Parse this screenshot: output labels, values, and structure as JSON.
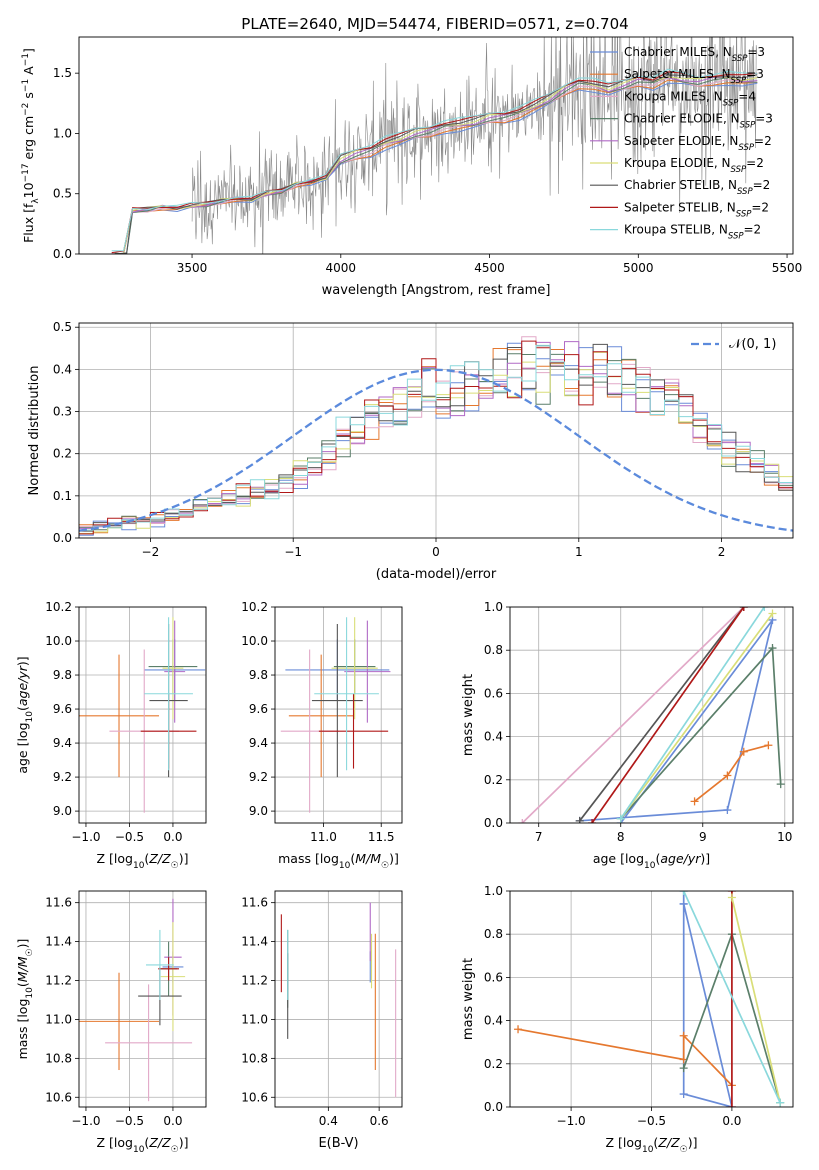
{
  "figure": {
    "title": "PLATE=2640, MJD=54474, FIBERID=0571, z=0.704"
  },
  "model_colors": [
    "#6a8cd8",
    "#e5782f",
    "#e2a9c8",
    "#5b7f6a",
    "#b06ac6",
    "#d9de78",
    "#555555",
    "#b01818",
    "#8ad8dc"
  ],
  "chart_data": [
    {
      "id": "spectrum",
      "type": "line",
      "title": "PLATE=2640, MJD=54474, FIBERID=0571, z=0.704",
      "xlabel": "wavelength [Angstrom, rest frame]",
      "ylabel": "Flux [f_λ 10^-17 erg cm^-2 s^-1 A^-1]",
      "xlim": [
        3120,
        5520
      ],
      "ylim": [
        0,
        1.8
      ],
      "xticks": [
        "3500",
        "4000",
        "4500",
        "5000",
        "5500"
      ],
      "yticks": [
        "0.0",
        "0.5",
        "1.0",
        "1.5"
      ],
      "grid": false,
      "legend_position": "top-right",
      "series": [
        {
          "name": "Chabrier MILES, N_SSP=3",
          "color_index": 0
        },
        {
          "name": "Salpeter MILES, N_SSP=3",
          "color_index": 1
        },
        {
          "name": "Kroupa MILES, N_SSP=4",
          "color_index": 2
        },
        {
          "name": "Chabrier ELODIE, N_SSP=3",
          "color_index": 3
        },
        {
          "name": "Salpeter ELODIE, N_SSP=2",
          "color_index": 4
        },
        {
          "name": "Kroupa ELODIE, N_SSP=2",
          "color_index": 5
        },
        {
          "name": "Chabrier STELIB, N_SSP=2",
          "color_index": 6
        },
        {
          "name": "Salpeter STELIB, N_SSP=2",
          "color_index": 7
        },
        {
          "name": "Kroupa STELIB, N_SSP=2",
          "color_index": 8
        }
      ],
      "model_continuum": {
        "x": [
          3230,
          3270,
          3300,
          3350,
          3400,
          3450,
          3500,
          3550,
          3600,
          3650,
          3700,
          3750,
          3800,
          3850,
          3900,
          3950,
          4000,
          4050,
          4100,
          4150,
          4200,
          4250,
          4300,
          4350,
          4400,
          4450,
          4500,
          4550,
          4600,
          4650,
          4700,
          4750,
          4800,
          4850,
          4900,
          4950,
          5000,
          5050,
          5100,
          5150,
          5200,
          5250,
          5300,
          5350,
          5400
        ],
        "y": [
          0.0,
          0.0,
          0.36,
          0.37,
          0.39,
          0.38,
          0.4,
          0.41,
          0.44,
          0.46,
          0.45,
          0.5,
          0.52,
          0.58,
          0.6,
          0.63,
          0.78,
          0.83,
          0.86,
          0.92,
          0.95,
          1.0,
          1.02,
          1.06,
          1.07,
          1.09,
          1.13,
          1.14,
          1.17,
          1.22,
          1.28,
          1.36,
          1.42,
          1.4,
          1.36,
          1.4,
          1.44,
          1.42,
          1.47,
          1.45,
          1.43,
          1.45,
          1.46,
          1.44,
          1.45
        ]
      },
      "data_trace": {
        "x_start": 3500,
        "x_end": 5400,
        "note_free": true
      }
    },
    {
      "id": "residuals",
      "type": "histogram",
      "xlabel": "(data-model)/error",
      "ylabel": "Normed distribution",
      "xlim": [
        -2.5,
        2.5
      ],
      "ylim": [
        0,
        0.51
      ],
      "xticks": [
        "−2",
        "−1",
        "0",
        "1",
        "2"
      ],
      "yticks": [
        "0.0",
        "0.1",
        "0.2",
        "0.3",
        "0.4",
        "0.5"
      ],
      "grid": true,
      "legend_position": "top-right",
      "reference_curve": {
        "name": "𝒩(0, 1)",
        "mean": 0,
        "sigma": 1
      },
      "bin_width": 0.1,
      "base_shape": [
        0.02,
        0.025,
        0.03,
        0.035,
        0.04,
        0.04,
        0.05,
        0.06,
        0.07,
        0.08,
        0.09,
        0.1,
        0.11,
        0.12,
        0.14,
        0.15,
        0.17,
        0.19,
        0.21,
        0.23,
        0.25,
        0.27,
        0.29,
        0.31,
        0.33,
        0.34,
        0.36,
        0.37,
        0.38,
        0.39,
        0.39,
        0.4,
        0.4,
        0.39,
        0.39,
        0.38,
        0.37,
        0.36,
        0.34,
        0.33,
        0.31,
        0.29,
        0.27,
        0.25,
        0.23,
        0.21,
        0.19,
        0.17,
        0.15,
        0.13,
        0.12,
        0.1,
        0.09,
        0.08,
        0.07,
        0.06,
        0.05,
        0.05,
        0.04,
        0.04
      ]
    },
    {
      "id": "age_vs_Z",
      "type": "scatter",
      "xlabel": "Z [log10(Z/Z☉)]",
      "ylabel": "age  [log10(age/yr)]",
      "xlim": [
        -1.08,
        0.38
      ],
      "ylim": [
        8.93,
        10.2
      ],
      "xticks": [
        "−1.0",
        "−0.5",
        "0.0"
      ],
      "yticks": [
        "9.0",
        "9.2",
        "9.4",
        "9.6",
        "9.8",
        "10.0",
        "10.2"
      ],
      "grid": true,
      "points": [
        {
          "x": 0.02,
          "y": 9.83,
          "xerr": 0.35,
          "yerr": 0.18,
          "color_index": 0
        },
        {
          "x": -0.62,
          "y": 9.56,
          "xerr": 0.46,
          "yerr": 0.36,
          "color_index": 1
        },
        {
          "x": -0.33,
          "y": 9.47,
          "xerr": 0.4,
          "yerr": 0.48,
          "color_index": 2
        },
        {
          "x": 0.0,
          "y": 9.85,
          "xerr": 0.28,
          "yerr": 0.16,
          "color_index": 3
        },
        {
          "x": 0.02,
          "y": 9.82,
          "xerr": 0.12,
          "yerr": 0.3,
          "color_index": 4
        },
        {
          "x": 0.0,
          "y": 9.84,
          "xerr": 0.12,
          "yerr": 0.3,
          "color_index": 5
        },
        {
          "x": -0.05,
          "y": 9.65,
          "xerr": 0.22,
          "yerr": 0.45,
          "color_index": 6
        },
        {
          "x": -0.05,
          "y": 9.47,
          "xerr": 0.32,
          "yerr": 0.22,
          "color_index": 7
        },
        {
          "x": -0.05,
          "y": 9.69,
          "xerr": 0.28,
          "yerr": 0.45,
          "color_index": 8
        }
      ]
    },
    {
      "id": "age_vs_mass",
      "type": "scatter",
      "xlabel": "mass [log10(M/M☉)]",
      "xlim": [
        10.58,
        11.68
      ],
      "ylim": [
        8.93,
        10.2
      ],
      "xticks": [
        "11.0",
        "11.5"
      ],
      "yticks": [
        "9.0",
        "9.2",
        "9.4",
        "9.6",
        "9.8",
        "10.0",
        "10.2"
      ],
      "grid": true,
      "points": [
        {
          "x": 11.12,
          "y": 9.83,
          "xerr": 0.45,
          "yerr": 0.18,
          "color_index": 0
        },
        {
          "x": 10.98,
          "y": 9.56,
          "xerr": 0.28,
          "yerr": 0.36,
          "color_index": 1
        },
        {
          "x": 10.88,
          "y": 9.47,
          "xerr": 0.25,
          "yerr": 0.48,
          "color_index": 2
        },
        {
          "x": 11.27,
          "y": 9.85,
          "xerr": 0.18,
          "yerr": 0.16,
          "color_index": 3
        },
        {
          "x": 11.38,
          "y": 9.82,
          "xerr": 0.2,
          "yerr": 0.3,
          "color_index": 4
        },
        {
          "x": 11.27,
          "y": 9.84,
          "xerr": 0.2,
          "yerr": 0.3,
          "color_index": 5
        },
        {
          "x": 11.12,
          "y": 9.65,
          "xerr": 0.22,
          "yerr": 0.45,
          "color_index": 6
        },
        {
          "x": 11.26,
          "y": 9.47,
          "xerr": 0.3,
          "yerr": 0.22,
          "color_index": 7
        },
        {
          "x": 11.2,
          "y": 9.69,
          "xerr": 0.28,
          "yerr": 0.45,
          "color_index": 8
        }
      ]
    },
    {
      "id": "mass_weight_vs_age",
      "type": "line",
      "xlabel": "age  [log10(age/yr)]",
      "ylabel": "mass weight",
      "xlim": [
        6.65,
        10.1
      ],
      "ylim": [
        0,
        1.0
      ],
      "xticks": [
        "7",
        "8",
        "9",
        "10"
      ],
      "yticks": [
        "0.0",
        "0.2",
        "0.4",
        "0.6",
        "0.8",
        "1.0"
      ],
      "grid": true,
      "series": [
        {
          "color_index": 0,
          "x": [
            7.5,
            9.3,
            9.85,
            8.0
          ],
          "y": [
            0.01,
            0.06,
            0.94,
            0.0
          ]
        },
        {
          "color_index": 1,
          "x": [
            8.9,
            9.3,
            9.5,
            9.8
          ],
          "y": [
            0.1,
            0.22,
            0.33,
            0.36
          ]
        },
        {
          "color_index": 2,
          "x": [
            6.8,
            9.5
          ],
          "y": [
            0.0,
            1.0
          ]
        },
        {
          "color_index": 3,
          "x": [
            8.0,
            9.85,
            9.95
          ],
          "y": [
            0.02,
            0.81,
            0.18
          ]
        },
        {
          "color_index": 6,
          "x": [
            7.5,
            9.5
          ],
          "y": [
            0.01,
            1.0
          ]
        },
        {
          "color_index": 7,
          "x": [
            7.65,
            9.5
          ],
          "y": [
            0.0,
            1.0
          ]
        },
        {
          "color_index": 5,
          "x": [
            8.0,
            9.85
          ],
          "y": [
            0.02,
            0.97
          ]
        },
        {
          "color_index": 8,
          "x": [
            8.0,
            9.75
          ],
          "y": [
            0.02,
            1.0
          ]
        }
      ]
    },
    {
      "id": "mass_vs_Z",
      "type": "scatter",
      "xlabel": "Z [log10(Z/Z☉)]",
      "ylabel": "mass [log10(M/M☉)]",
      "xlim": [
        -1.08,
        0.38
      ],
      "ylim": [
        10.55,
        11.66
      ],
      "xticks": [
        "−1.0",
        "−0.5",
        "0.0"
      ],
      "yticks": [
        "10.6",
        "10.8",
        "11.0",
        "11.2",
        "11.4",
        "11.6"
      ],
      "grid": true,
      "points": [
        {
          "x": 0.0,
          "y": 11.27,
          "xerr": 0.12,
          "yerr": 0.08,
          "color_index": 0
        },
        {
          "x": -0.62,
          "y": 10.99,
          "xerr": 0.46,
          "yerr": 0.25,
          "color_index": 1
        },
        {
          "x": -0.28,
          "y": 10.88,
          "xerr": 0.5,
          "yerr": 0.3,
          "color_index": 2
        },
        {
          "x": -0.05,
          "y": 11.26,
          "xerr": 0.1,
          "yerr": 0.14,
          "color_index": 3
        },
        {
          "x": 0.0,
          "y": 11.32,
          "xerr": 0.1,
          "yerr": 0.3,
          "color_index": 4
        },
        {
          "x": 0.0,
          "y": 11.22,
          "xerr": 0.14,
          "yerr": 0.28,
          "color_index": 5
        },
        {
          "x": -0.15,
          "y": 11.12,
          "xerr": 0.25,
          "yerr": 0.15,
          "color_index": 6
        },
        {
          "x": -0.05,
          "y": 11.26,
          "xerr": 0.12,
          "yerr": 0.06,
          "color_index": 7
        },
        {
          "x": -0.15,
          "y": 11.28,
          "xerr": 0.16,
          "yerr": 0.18,
          "color_index": 8
        }
      ]
    },
    {
      "id": "mass_vs_ebv",
      "type": "scatter",
      "xlabel": "E(B-V)",
      "xlim": [
        0.19,
        0.69
      ],
      "ylim": [
        10.55,
        11.66
      ],
      "xticks": [
        "0.4",
        "0.6"
      ],
      "yticks": [
        "10.6",
        "10.8",
        "11.0",
        "11.2",
        "11.4",
        "11.6"
      ],
      "grid": true,
      "points": [
        {
          "x": 0.565,
          "y": 11.27,
          "yerr": 0.08,
          "color_index": 0
        },
        {
          "x": 0.585,
          "y": 11.09,
          "yerr": 0.35,
          "color_index": 1
        },
        {
          "x": 0.665,
          "y": 10.98,
          "yerr": 0.38,
          "color_index": 2
        },
        {
          "x": 0.24,
          "y": 11.26,
          "yerr": 0.2,
          "color_index": 3
        },
        {
          "x": 0.565,
          "y": 11.45,
          "yerr": 0.15,
          "color_index": 4
        },
        {
          "x": 0.57,
          "y": 11.3,
          "yerr": 0.14,
          "color_index": 5
        },
        {
          "x": 0.24,
          "y": 11.12,
          "yerr": 0.22,
          "color_index": 6
        },
        {
          "x": 0.215,
          "y": 11.34,
          "yerr": 0.2,
          "color_index": 7
        },
        {
          "x": 0.24,
          "y": 11.28,
          "yerr": 0.18,
          "color_index": 8
        }
      ]
    },
    {
      "id": "mass_weight_vs_Z",
      "type": "line",
      "xlabel": "Z [log10(Z/Z☉)]",
      "ylabel": "mass weight",
      "xlim": [
        -1.38,
        0.38
      ],
      "ylim": [
        0,
        1.0
      ],
      "xticks": [
        "−1.0",
        "−0.5",
        "0.0"
      ],
      "yticks": [
        "0.0",
        "0.2",
        "0.4",
        "0.6",
        "0.8",
        "1.0"
      ],
      "grid": true,
      "series": [
        {
          "color_index": 0,
          "x": [
            -0.3,
            -0.3,
            0.0,
            -0.3,
            -0.3
          ],
          "y": [
            1.0,
            0.94,
            0.0,
            0.06,
            0.94
          ]
        },
        {
          "color_index": 1,
          "x": [
            -1.33,
            -0.3,
            -0.3,
            0.0
          ],
          "y": [
            0.36,
            0.22,
            0.33,
            0.1
          ]
        },
        {
          "color_index": 3,
          "x": [
            -0.3,
            0.0,
            0.3
          ],
          "y": [
            0.18,
            0.8,
            0.02
          ]
        },
        {
          "color_index": 7,
          "x": [
            0.0,
            0.0
          ],
          "y": [
            0.0,
            1.0
          ]
        },
        {
          "color_index": 5,
          "x": [
            0.0,
            0.3
          ],
          "y": [
            0.97,
            0.02
          ]
        },
        {
          "color_index": 8,
          "x": [
            -0.3,
            0.3
          ],
          "y": [
            1.0,
            0.02
          ]
        }
      ]
    }
  ]
}
